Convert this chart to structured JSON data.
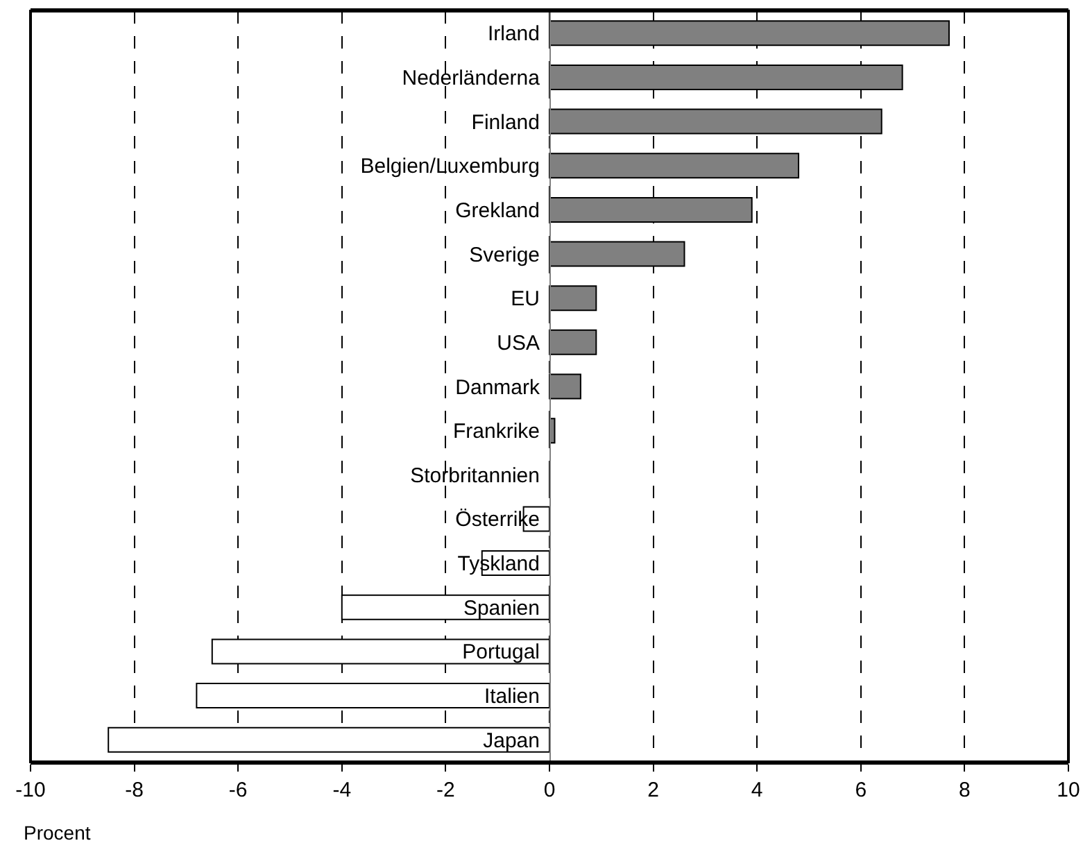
{
  "chart_data": {
    "type": "bar",
    "orientation": "horizontal",
    "xlabel": "Procent",
    "categories": [
      "Irland",
      "Nederländerna",
      "Finland",
      "Belgien/Luxemburg",
      "Grekland",
      "Sverige",
      "EU",
      "USA",
      "Danmark",
      "Frankrike",
      "Storbritannien",
      "Österrike",
      "Tyskland",
      "Spanien",
      "Portugal",
      "Italien",
      "Japan"
    ],
    "values": [
      7.7,
      6.8,
      6.4,
      4.8,
      3.9,
      2.6,
      0.9,
      0.9,
      0.6,
      0.1,
      0.0,
      -0.5,
      -1.3,
      -4.0,
      -6.5,
      -6.8,
      -8.5
    ],
    "colors": [
      "#808080",
      "#808080",
      "#808080",
      "#808080",
      "#808080",
      "#808080",
      "#808080",
      "#808080",
      "#808080",
      "#808080",
      "#000000",
      "#ffffff",
      "#ffffff",
      "#ffffff",
      "#ffffff",
      "#ffffff",
      "#ffffff"
    ],
    "xlim": [
      -10,
      10
    ],
    "xticks": [
      -10,
      -8,
      -6,
      -4,
      -2,
      0,
      2,
      4,
      6,
      8,
      10
    ],
    "grid": "x",
    "legend": false
  }
}
